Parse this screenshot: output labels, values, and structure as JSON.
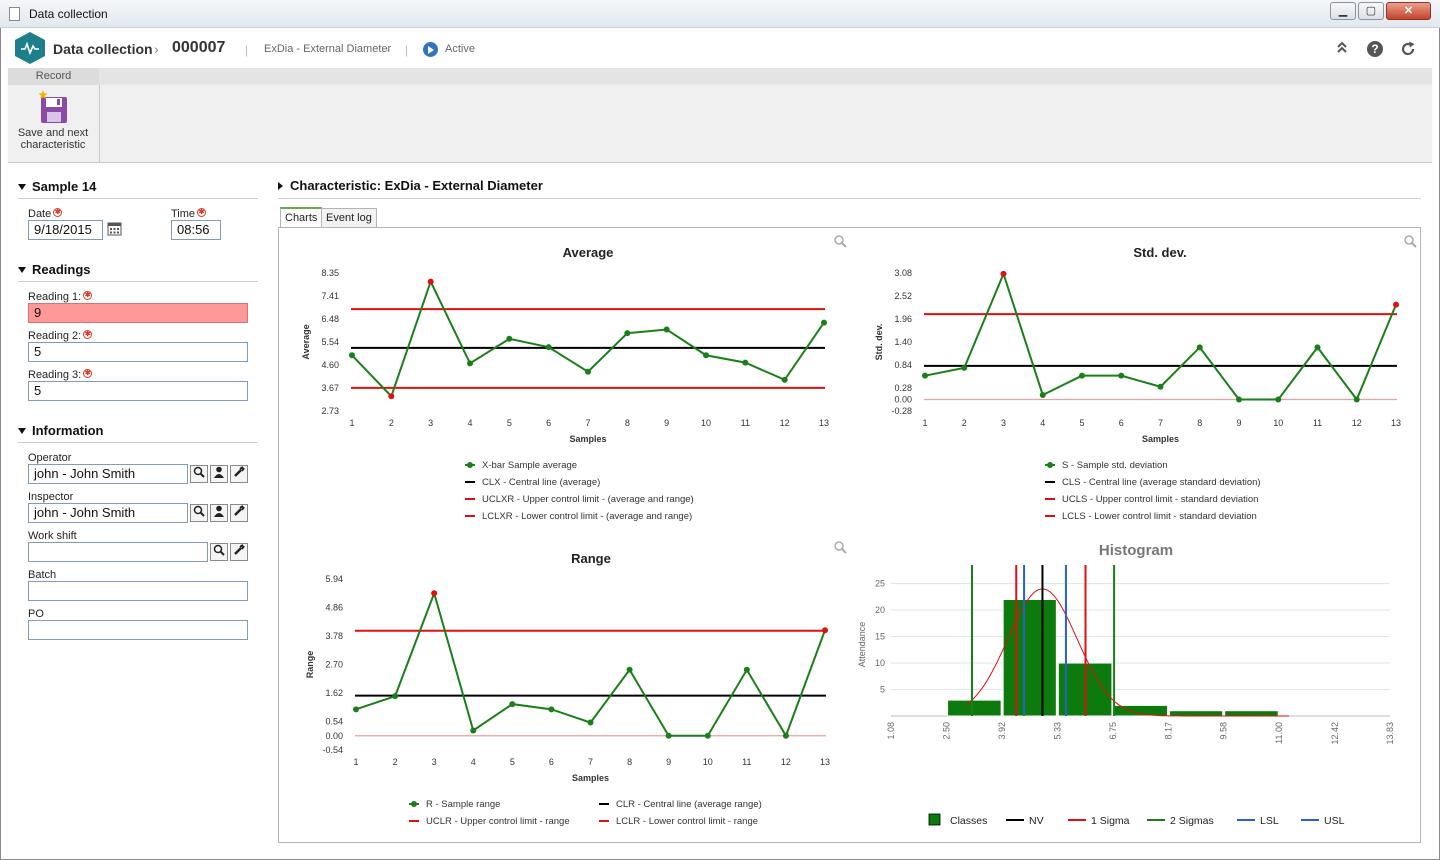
{
  "window": {
    "title": "Data collection",
    "controls": {
      "minimize": "▁",
      "maximize": "▢",
      "close": "✕"
    }
  },
  "header": {
    "module": "Data collection",
    "record_id": "000007",
    "characteristic": "ExDia - External Diameter",
    "status": "Active",
    "icons": [
      "collapse-icon",
      "help-icon",
      "refresh-icon"
    ]
  },
  "ribbon": {
    "group": "Record",
    "save_button": {
      "line1": "Save and next",
      "line2": "characteristic"
    }
  },
  "sample": {
    "title": "Sample 14",
    "date_label": "Date",
    "date_value": "9/18/2015",
    "time_label": "Time",
    "time_value": "08:56"
  },
  "readings": {
    "title": "Readings",
    "items": [
      {
        "label": "Reading 1:",
        "value": "9",
        "error": true
      },
      {
        "label": "Reading 2:",
        "value": "5",
        "error": false
      },
      {
        "label": "Reading 3:",
        "value": "5",
        "error": false
      }
    ]
  },
  "information": {
    "title": "Information",
    "operator_label": "Operator",
    "operator_value": "john - John Smith",
    "inspector_label": "Inspector",
    "inspector_value": "john - John Smith",
    "workshift_label": "Work shift",
    "workshift_value": "",
    "batch_label": "Batch",
    "batch_value": "",
    "po_label": "PO",
    "po_value": ""
  },
  "characteristic_panel": {
    "title": "Characteristic: ExDia - External Diameter",
    "tabs": [
      "Charts",
      "Event log"
    ],
    "active_tab": "Charts"
  },
  "colors": {
    "series": "#1a7f1a",
    "outlier": "#e01010",
    "center": "#000000",
    "limit": "#e01010",
    "lsl": "#2a5fd0",
    "zero": "#e8a0a0"
  },
  "chart_data": [
    {
      "type": "line",
      "title": "Average",
      "xlabel": "Samples",
      "ylabel": "Average",
      "x": [
        1,
        2,
        3,
        4,
        5,
        6,
        7,
        8,
        9,
        10,
        11,
        12,
        13
      ],
      "yticks": [
        "8.35",
        "7.41",
        "6.48",
        "5.54",
        "4.60",
        "3.67",
        "2.73"
      ],
      "ytick_values": [
        8.35,
        7.41,
        6.48,
        5.54,
        4.6,
        3.67,
        2.73
      ],
      "ylim": [
        2.73,
        8.35
      ],
      "series": [
        {
          "name": "X-bar Sample average",
          "values": [
            5.0,
            3.33,
            8.0,
            4.67,
            5.67,
            5.33,
            4.33,
            5.9,
            6.05,
            5.0,
            4.7,
            4.0,
            6.33
          ]
        }
      ],
      "outliers": [
        2,
        3
      ],
      "lines": [
        {
          "name": "CLX - Central line (average)",
          "value": 5.3,
          "kind": "center"
        },
        {
          "name": "UCLXR - Upper control limit - (average and range)",
          "value": 6.88,
          "kind": "limit"
        },
        {
          "name": "LCLXR - Lower control limit - (average and range)",
          "value": 3.67,
          "kind": "limit"
        }
      ]
    },
    {
      "type": "line",
      "title": "Std. dev.",
      "xlabel": "Samples",
      "ylabel": "Std. dev.",
      "x": [
        1,
        2,
        3,
        4,
        5,
        6,
        7,
        8,
        9,
        10,
        11,
        12,
        13
      ],
      "yticks": [
        "3.08",
        "2.52",
        "1.96",
        "1.40",
        "0.84",
        "0.28",
        "0.00",
        "-0.28"
      ],
      "ytick_values": [
        3.08,
        2.52,
        1.96,
        1.4,
        0.84,
        0.28,
        0.0,
        -0.28
      ],
      "ylim": [
        -0.28,
        3.08
      ],
      "series": [
        {
          "name": "S - Sample std. deviation",
          "values": [
            0.58,
            0.77,
            3.06,
            0.11,
            0.58,
            0.58,
            0.31,
            1.27,
            0.0,
            0.0,
            1.27,
            0.0,
            2.31
          ]
        }
      ],
      "outliers": [
        3,
        13
      ],
      "lines": [
        {
          "name": "CLS - Central line (average standard deviation)",
          "value": 0.82,
          "kind": "center"
        },
        {
          "name": "UCLS - Upper control limit - standard deviation",
          "value": 2.08,
          "kind": "limit"
        },
        {
          "name": "LCLS - Lower control limit - standard deviation",
          "value": 0.0,
          "kind": "limit"
        }
      ]
    },
    {
      "type": "line",
      "title": "Range",
      "xlabel": "Samples",
      "ylabel": "Range",
      "x": [
        1,
        2,
        3,
        4,
        5,
        6,
        7,
        8,
        9,
        10,
        11,
        12,
        13
      ],
      "yticks": [
        "5.94",
        "4.86",
        "3.78",
        "2.70",
        "1.62",
        "0.54",
        "0.00",
        "-0.54"
      ],
      "ytick_values": [
        5.94,
        4.86,
        3.78,
        2.7,
        1.62,
        0.54,
        0.0,
        -0.54
      ],
      "ylim": [
        -0.54,
        5.94
      ],
      "series": [
        {
          "name": "R - Sample range",
          "values": [
            1.0,
            1.5,
            5.4,
            0.2,
            1.2,
            1.0,
            0.5,
            2.5,
            0.0,
            0.0,
            2.5,
            0.0,
            4.0
          ]
        }
      ],
      "outliers": [
        3,
        13
      ],
      "lines": [
        {
          "name": "CLR - Central line (average range)",
          "value": 1.52,
          "kind": "center"
        },
        {
          "name": "UCLR - Upper control limit - range",
          "value": 3.98,
          "kind": "limit"
        },
        {
          "name": "LCLR - Lower control limit - range",
          "value": 0.0,
          "kind": "limit"
        }
      ]
    },
    {
      "type": "bar",
      "title": "Histogram",
      "ylabel": "Attendance",
      "xticks": [
        "1.08",
        "2.50",
        "3.92",
        "5.33",
        "6.75",
        "8.17",
        "9.58",
        "11.00",
        "12.42",
        "13.83"
      ],
      "xtick_values": [
        1.08,
        2.5,
        3.92,
        5.33,
        6.75,
        8.17,
        9.58,
        11.0,
        12.42,
        13.83
      ],
      "xlim": [
        1.08,
        13.83
      ],
      "yticks": [
        "25",
        "20",
        "15",
        "10",
        "5"
      ],
      "ylim": [
        0,
        27
      ],
      "bins": [
        {
          "from": 2.5,
          "to": 3.92,
          "value": 3
        },
        {
          "from": 3.92,
          "to": 5.33,
          "value": 22
        },
        {
          "from": 5.33,
          "to": 6.75,
          "value": 10
        },
        {
          "from": 6.75,
          "to": 8.17,
          "value": 2
        },
        {
          "from": 8.17,
          "to": 9.58,
          "value": 1
        },
        {
          "from": 9.58,
          "to": 11.0,
          "value": 1
        }
      ],
      "lines": [
        {
          "name": "NV",
          "value": 4.95,
          "kind": "center"
        },
        {
          "name": "1 Sigma",
          "value": 4.28,
          "kind": "limit"
        },
        {
          "name": "1 Sigma",
          "value": 6.05,
          "kind": "limit"
        },
        {
          "name": "2 Sigmas",
          "value": 3.15,
          "kind": "sigma2"
        },
        {
          "name": "2 Sigmas",
          "value": 6.78,
          "kind": "sigma2"
        },
        {
          "name": "LSL",
          "value": 4.48,
          "kind": "spec"
        },
        {
          "name": "USL",
          "value": 5.55,
          "kind": "spec"
        }
      ],
      "legend": [
        "Classes",
        "NV",
        "1 Sigma",
        "2 Sigmas",
        "LSL",
        "USL"
      ]
    }
  ]
}
